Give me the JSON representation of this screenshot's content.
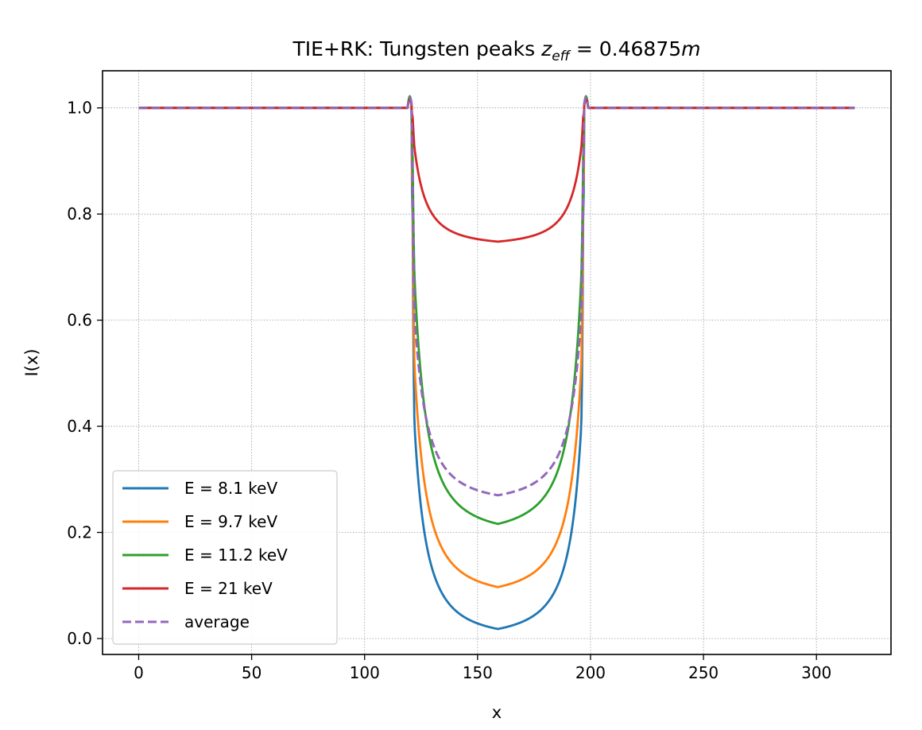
{
  "chart_data": {
    "type": "line",
    "title_prefix": "TIE+RK: Tungsten peaks ",
    "title_var": "z",
    "title_sub": "eff",
    "title_suffix": " = 0.46875",
    "title_unit": "m",
    "xlabel": "x",
    "ylabel": "I(x)",
    "xlim": [
      -16,
      333
    ],
    "ylim": [
      -0.03,
      1.07
    ],
    "xticks": [
      0,
      50,
      100,
      150,
      200,
      250,
      300
    ],
    "yticks": [
      0.0,
      0.2,
      0.4,
      0.6,
      0.8,
      1.0
    ],
    "xtick_labels": [
      "0",
      "50",
      "100",
      "150",
      "200",
      "250",
      "300"
    ],
    "ytick_labels": [
      "0.0",
      "0.2",
      "0.4",
      "0.6",
      "0.8",
      "1.0"
    ],
    "grid": true,
    "legend_position": "lower-left",
    "x_domain": [
      0,
      317
    ],
    "edges": [
      121,
      197
    ],
    "series": [
      {
        "name": "E = 8.1 keV",
        "color": "#1f77b4",
        "dash": "solid",
        "edge_value": 0.5,
        "center_value": 0.018,
        "peak": 1.02
      },
      {
        "name": "E = 9.7 keV",
        "color": "#ff7f0e",
        "dash": "solid",
        "edge_value": 0.62,
        "center_value": 0.097,
        "peak": 1.02
      },
      {
        "name": "E = 11.2 keV",
        "color": "#2ca02c",
        "dash": "solid",
        "edge_value": 0.8,
        "center_value": 0.216,
        "peak": 1.022
      },
      {
        "name": "E = 21 keV",
        "color": "#d62728",
        "dash": "solid",
        "edge_value": 0.97,
        "center_value": 0.748,
        "peak": 1.015
      },
      {
        "name": "average",
        "color": "#9467bd",
        "dash": "dashed",
        "edge_value": 0.7,
        "center_value": 0.27,
        "peak": 1.02
      }
    ]
  }
}
